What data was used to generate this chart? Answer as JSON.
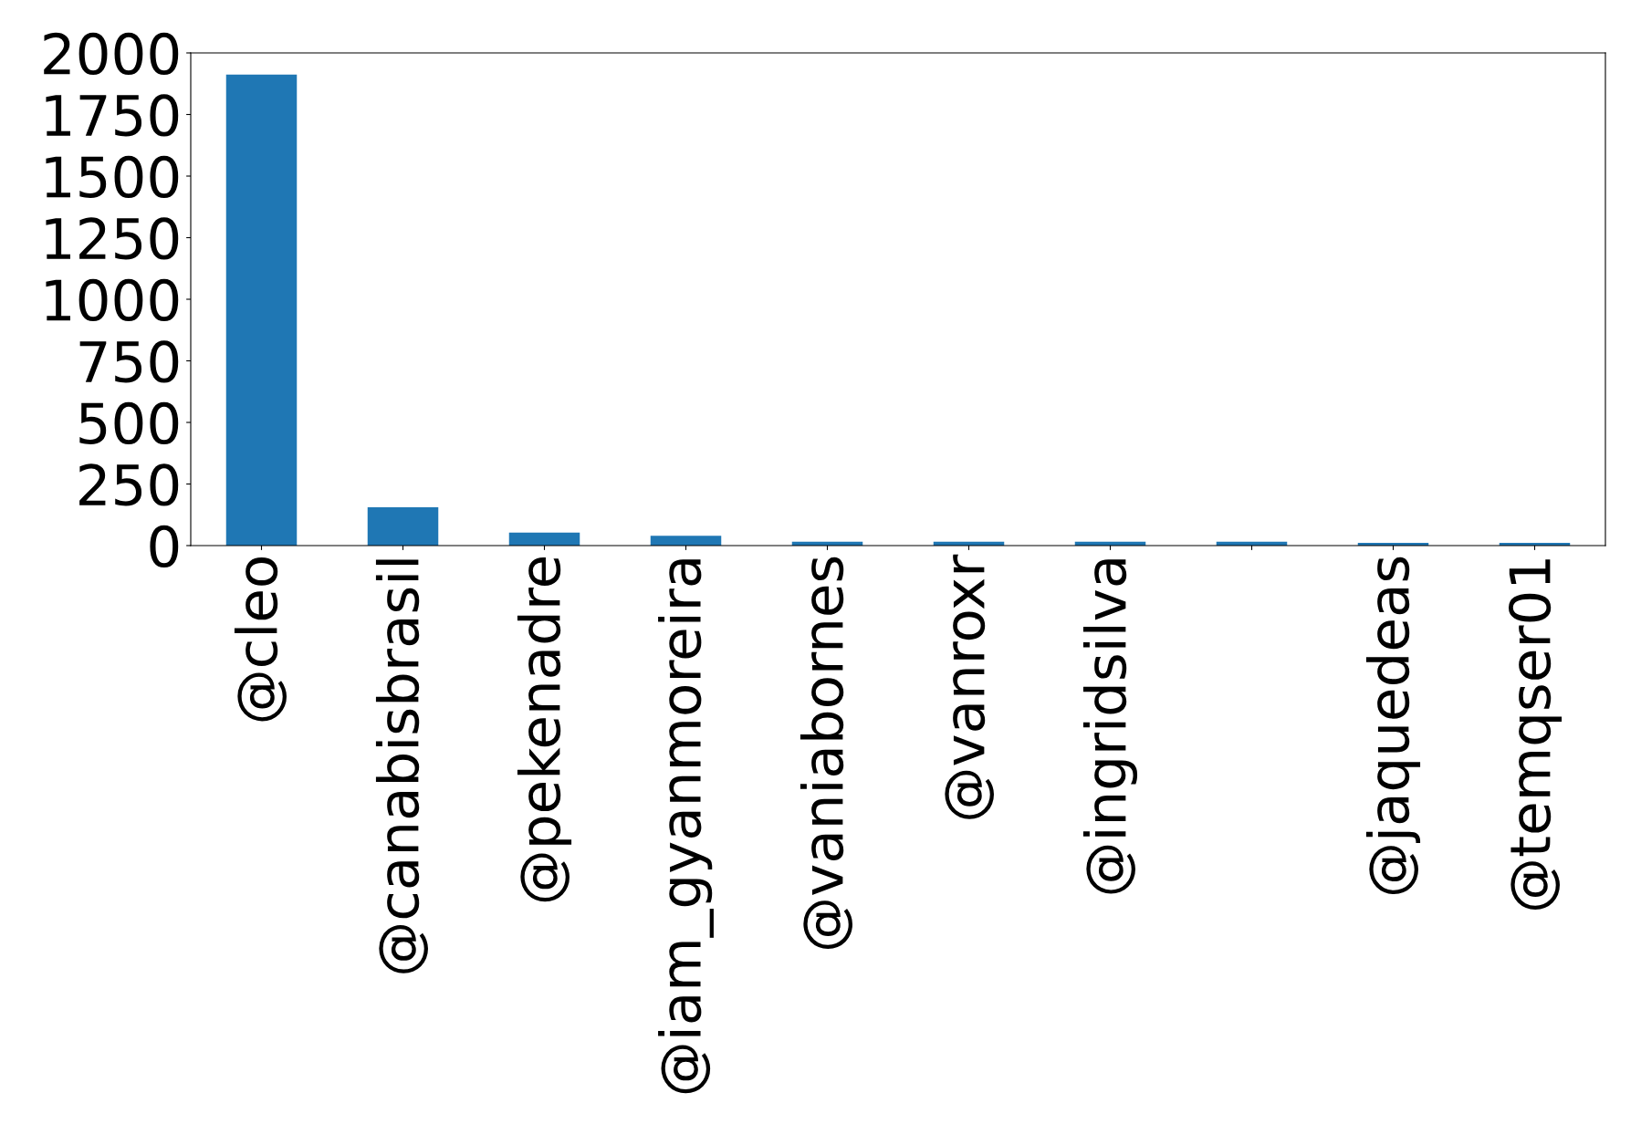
{
  "chart_data": {
    "type": "bar",
    "categories": [
      "@cleo",
      "@canabisbrasil",
      "@pekenadre",
      "@iam_gyanmoreira",
      "@vaniabornes",
      "@vanroxr",
      "@ingridsilva",
      null,
      "@jaquedeas",
      "@temqser01"
    ],
    "values": [
      1912,
      156,
      53,
      40,
      16,
      16,
      16,
      16,
      11,
      11
    ],
    "color": "#1f77b4",
    "ylim": [
      0,
      2000
    ],
    "yticks": [
      0,
      250,
      500,
      750,
      1000,
      1250,
      1500,
      1750,
      2000
    ],
    "grid": false,
    "legend": false
  }
}
